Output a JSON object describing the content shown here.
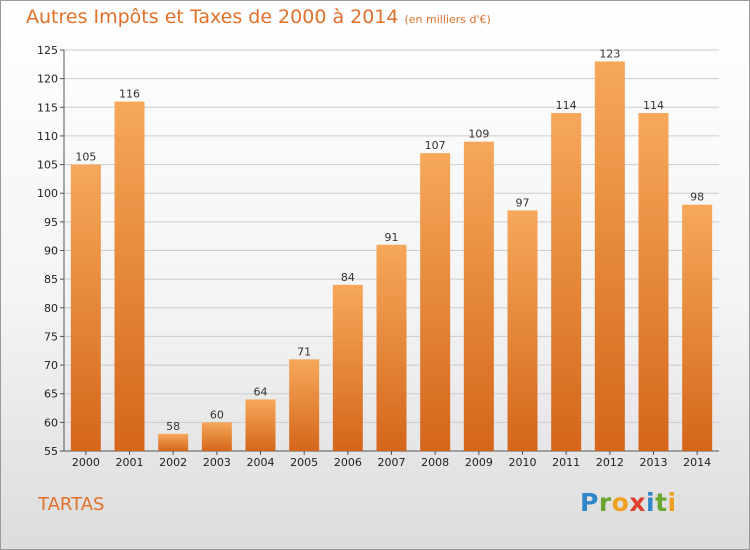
{
  "title": "Autres Impôts et Taxes de 2000 à 2014",
  "unit_note": "(en milliers d'€)",
  "town": "TARTAS",
  "logo": {
    "text": "Proxiti",
    "letters": [
      {
        "ch": "P",
        "color": "#2f86c8"
      },
      {
        "ch": "r",
        "color": "#6aa532"
      },
      {
        "ch": "o",
        "color": "#f0a020"
      },
      {
        "ch": "x",
        "color": "#e04030"
      },
      {
        "ch": "i",
        "color": "#2f86c8"
      },
      {
        "ch": "t",
        "color": "#6aa532"
      },
      {
        "ch": "i",
        "color": "#f0a020"
      }
    ]
  },
  "colors": {
    "title": "#e0702a",
    "bar_top": "#f6a85a",
    "bar_bottom": "#d4661a",
    "grid": "#cccccc"
  },
  "chart_data": {
    "type": "bar",
    "title": "Autres Impôts et Taxes de 2000 à 2014",
    "subtitle": "(en milliers d'€)",
    "xlabel": "",
    "ylabel": "",
    "categories": [
      "2000",
      "2001",
      "2002",
      "2003",
      "2004",
      "2005",
      "2006",
      "2007",
      "2008",
      "2009",
      "2010",
      "2011",
      "2012",
      "2013",
      "2014"
    ],
    "values": [
      105,
      116,
      58,
      60,
      64,
      71,
      84,
      91,
      107,
      109,
      97,
      114,
      123,
      114,
      98
    ],
    "ylim": [
      55,
      125
    ],
    "yticks": [
      55,
      60,
      65,
      70,
      75,
      80,
      85,
      90,
      95,
      100,
      105,
      110,
      115,
      120,
      125
    ],
    "grid": true,
    "data_labels": true
  }
}
